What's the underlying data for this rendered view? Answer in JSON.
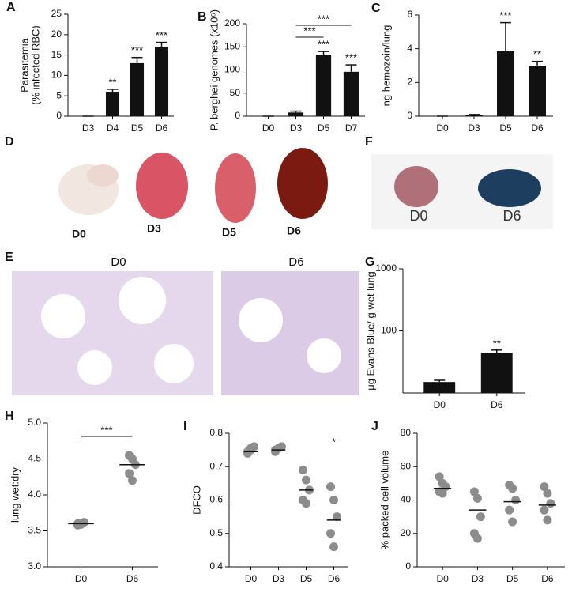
{
  "chart_data": [
    {
      "type": "bar",
      "panel_label": "A",
      "ylabel": [
        "Parasitemia",
        "(% infected RBC)"
      ],
      "categories": [
        "D3",
        "D4",
        "D5",
        "D6"
      ],
      "values": [
        0,
        6,
        13,
        17
      ],
      "errors": [
        0,
        0.6,
        1.4,
        1.1
      ],
      "color": "#111111",
      "ylim": [
        0,
        25
      ],
      "yticks": [
        0,
        5,
        10,
        15,
        20,
        25
      ],
      "annotations": [
        {
          "category": "D4",
          "text": "**"
        },
        {
          "category": "D5",
          "text": "***"
        },
        {
          "category": "D6",
          "text": "***"
        }
      ]
    },
    {
      "type": "bar",
      "panel_label": "B",
      "ylabel": [
        "P. berghei genomes (x10⁶)"
      ],
      "categories": [
        "D0",
        "D3",
        "D5",
        "D7"
      ],
      "values": [
        0,
        8,
        133,
        96
      ],
      "errors": [
        0,
        3,
        7,
        15
      ],
      "color": "#111111",
      "ylim": [
        0,
        200
      ],
      "yticks": [
        0,
        50,
        100,
        150,
        200
      ],
      "annotations": [
        {
          "category": "D5",
          "text": "***"
        },
        {
          "category": "D7",
          "text": "***"
        }
      ],
      "brackets": [
        {
          "from": "D3",
          "to": "D5",
          "text": "***"
        },
        {
          "from": "D3",
          "to": "D7",
          "text": "***"
        }
      ]
    },
    {
      "type": "bar",
      "panel_label": "C",
      "ylabel": [
        "ng hemozoin/lung"
      ],
      "categories": [
        "D0",
        "D3",
        "D5",
        "D6"
      ],
      "values": [
        0,
        0.05,
        3.85,
        3.0
      ],
      "errors": [
        0,
        0.05,
        1.7,
        0.25
      ],
      "color": "#111111",
      "ylim": [
        0,
        6
      ],
      "yticks": [
        0,
        2,
        4,
        6
      ],
      "annotations": [
        {
          "category": "D5",
          "text": "***"
        },
        {
          "category": "D6",
          "text": "**"
        }
      ]
    },
    {
      "type": "bar",
      "panel_label": "G",
      "ylabel": [
        "μg Evans Blue/ g wet lung"
      ],
      "categories": [
        "D0",
        "D6"
      ],
      "values": [
        15,
        44
      ],
      "errors": [
        1,
        5
      ],
      "color": "#111111",
      "log_scale": true,
      "ylim": [
        10,
        1000
      ],
      "yticks": [
        100,
        1000
      ],
      "annotations": [
        {
          "category": "D6",
          "text": "**"
        }
      ]
    },
    {
      "type": "strip",
      "panel_label": "H",
      "ylabel": [
        "lung wet:dry"
      ],
      "categories": [
        "D0",
        "D6"
      ],
      "points": [
        [
          3.58,
          3.6,
          3.62,
          3.6,
          3.59
        ],
        [
          4.55,
          4.5,
          4.42,
          4.3,
          4.2
        ]
      ],
      "means": [
        3.6,
        4.42
      ],
      "color": "#8c8c8c",
      "ylim": [
        3,
        5
      ],
      "yticks": [
        {
          "value": 3,
          "label": "3.0"
        },
        3.5,
        {
          "value": 4,
          "label": "4.0"
        },
        4.5,
        {
          "value": 5,
          "label": "5.0"
        }
      ],
      "brackets": [
        {
          "from": "D0",
          "to": "D6",
          "text": "***"
        }
      ]
    },
    {
      "type": "strip",
      "panel_label": "I",
      "ylabel": [
        "DFCO"
      ],
      "categories": [
        "D0",
        "D3",
        "D5",
        "D6"
      ],
      "points": [
        [
          0.74,
          0.75,
          0.76,
          0.745,
          0.755
        ],
        [
          0.745,
          0.755,
          0.76,
          0.75
        ],
        [
          0.69,
          0.66,
          0.63,
          0.6,
          0.59
        ],
        [
          0.64,
          0.6,
          0.55,
          0.5,
          0.46
        ]
      ],
      "means": [
        0.745,
        0.75,
        0.63,
        0.54
      ],
      "color": "#8c8c8c",
      "ylim": [
        0.4,
        0.8
      ],
      "yticks": [
        0.4,
        0.5,
        0.6,
        0.7,
        0.8
      ],
      "annotations": [
        {
          "category": "D6",
          "text": "*"
        }
      ]
    },
    {
      "type": "strip",
      "panel_label": "J",
      "ylabel": [
        "% packed cell volume"
      ],
      "categories": [
        "D0",
        "D3",
        "D5",
        "D6"
      ],
      "points": [
        [
          54,
          50,
          48,
          45,
          44
        ],
        [
          45,
          41,
          30,
          20,
          17
        ],
        [
          49,
          47,
          40,
          34,
          27
        ],
        [
          48,
          44,
          38,
          34,
          28
        ]
      ],
      "means": [
        47,
        34,
        39,
        37
      ],
      "color": "#8c8c8c",
      "ylim": [
        0,
        80
      ],
      "yticks": [
        0,
        20,
        40,
        60,
        80
      ]
    }
  ],
  "panels": [
    {
      "label": "D",
      "images": [
        "D0",
        "D3",
        "D5",
        "D6"
      ]
    },
    {
      "label": "E",
      "images": [
        "D0",
        "D6"
      ]
    },
    {
      "label": "F",
      "images": [
        "D0",
        "D6"
      ]
    }
  ]
}
